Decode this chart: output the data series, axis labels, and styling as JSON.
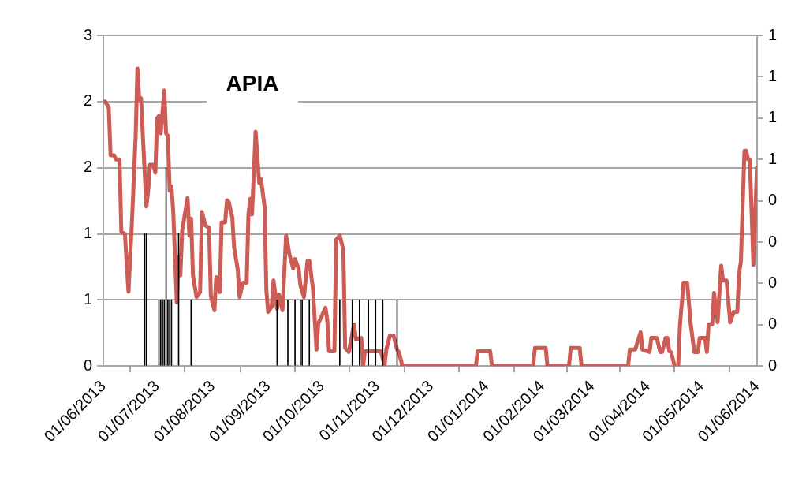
{
  "chart_data": {
    "type": "line",
    "title": "APIA",
    "xlim": [
      "2013-06-01",
      "2014-06-01"
    ],
    "xticks": [
      {
        "value": "2013-06-01",
        "label": "01/06/2013"
      },
      {
        "value": "2013-07-01",
        "label": "01/07/2013"
      },
      {
        "value": "2013-08-01",
        "label": "01/08/2013"
      },
      {
        "value": "2013-09-01",
        "label": "01/09/2013"
      },
      {
        "value": "2013-10-01",
        "label": "01/10/2013"
      },
      {
        "value": "2013-11-01",
        "label": "01/11/2013"
      },
      {
        "value": "2013-12-01",
        "label": "01/12/2013"
      },
      {
        "value": "2014-01-01",
        "label": "01/01/2014"
      },
      {
        "value": "2014-02-01",
        "label": "01/02/2014"
      },
      {
        "value": "2014-03-01",
        "label": "01/03/2014"
      },
      {
        "value": "2014-04-01",
        "label": "01/04/2014"
      },
      {
        "value": "2014-05-01",
        "label": "01/05/2014"
      },
      {
        "value": "2014-06-01",
        "label": "01/06/2014"
      }
    ],
    "ylim": [
      0,
      2.5
    ],
    "yticks": [
      0,
      {
        "value": 0.5,
        "label": "1"
      },
      1,
      {
        "value": 1.5,
        "label": "2"
      },
      2,
      {
        "value": 2.5,
        "label": "3"
      }
    ],
    "y2lim": [
      0,
      0.8
    ],
    "y2ticks": [
      0,
      {
        "value": 0.1,
        "label": "0"
      },
      {
        "value": 0.2,
        "label": "0"
      },
      {
        "value": 0.3,
        "label": "0"
      },
      {
        "value": 0.4,
        "label": "0"
      },
      {
        "value": 0.5,
        "label": "1"
      },
      {
        "value": 0.6,
        "label": "1"
      },
      {
        "value": 0.7,
        "label": "1"
      },
      {
        "value": 0.8,
        "label": "1"
      }
    ],
    "grid": "y",
    "legend": false,
    "marker": "none",
    "line_style": "solid",
    "series": [
      {
        "type": "bar",
        "color": "#000000",
        "x": [
          "2013-06-24",
          "2013-06-25",
          "2013-07-02",
          "2013-07-03",
          "2013-07-04",
          "2013-07-05",
          "2013-07-06",
          "2013-07-07",
          "2013-07-08",
          "2013-07-09",
          "2013-07-13",
          "2013-07-20",
          "2013-09-06",
          "2013-09-12",
          "2013-09-16",
          "2013-09-19",
          "2013-09-20",
          "2013-09-24",
          "2013-10-11",
          "2013-10-18",
          "2013-10-22",
          "2013-10-27",
          "2013-10-31",
          "2013-11-04",
          "2013-11-12"
        ],
        "values": [
          1,
          1,
          0.5,
          0.5,
          0.5,
          0.5,
          1.5,
          0.5,
          0.5,
          0.5,
          1,
          0.5,
          0.5,
          0.5,
          0.5,
          0.5,
          0.5,
          0.5,
          0.5,
          0.5,
          0.5,
          0.5,
          0.5,
          0.5,
          0.5
        ]
      },
      {
        "axis": "y2",
        "color": "#cd5c55",
        "x": [
          "2013-06-01",
          "2013-06-02",
          "2013-06-04",
          "2013-06-05",
          "2013-06-07",
          "2013-06-08",
          "2013-06-10",
          "2013-06-11",
          "2013-06-13",
          "2013-06-15",
          "2013-06-17",
          "2013-06-19",
          "2013-06-20",
          "2013-06-21",
          "2013-06-22",
          "2013-06-25",
          "2013-06-26",
          "2013-06-27",
          "2013-06-29",
          "2013-06-30",
          "2013-07-01",
          "2013-07-02",
          "2013-07-03",
          "2013-07-04",
          "2013-07-05",
          "2013-07-06",
          "2013-07-07",
          "2013-07-08",
          "2013-07-09",
          "2013-07-10",
          "2013-07-12",
          "2013-07-13",
          "2013-07-14",
          "2013-07-15",
          "2013-07-18",
          "2013-07-19",
          "2013-07-20",
          "2013-07-21",
          "2013-07-23",
          "2013-07-25",
          "2013-07-26",
          "2013-07-28",
          "2013-07-30",
          "2013-07-31",
          "2013-08-02",
          "2013-08-03",
          "2013-08-05",
          "2013-08-06",
          "2013-08-08",
          "2013-08-09",
          "2013-08-10",
          "2013-08-12",
          "2013-08-13",
          "2013-08-15",
          "2013-08-16",
          "2013-08-18",
          "2013-08-20",
          "2013-08-21",
          "2013-08-22",
          "2013-08-23",
          "2013-08-25",
          "2013-08-27",
          "2013-08-28",
          "2013-08-30",
          "2013-08-31",
          "2013-09-01",
          "2013-09-03",
          "2013-09-04",
          "2013-09-06",
          "2013-09-07",
          "2013-09-09",
          "2013-09-11",
          "2013-09-13",
          "2013-09-15",
          "2013-09-16",
          "2013-09-18",
          "2013-09-19",
          "2013-09-21",
          "2013-09-23",
          "2013-09-24",
          "2013-09-26",
          "2013-09-28",
          "2013-09-29",
          "2013-10-03",
          "2013-10-04",
          "2013-10-05",
          "2013-10-08",
          "2013-10-09",
          "2013-10-11",
          "2013-10-13",
          "2013-10-14",
          "2013-10-16",
          "2013-10-19",
          "2013-10-20",
          "2013-10-23",
          "2013-10-24",
          "2013-10-25",
          "2013-11-03",
          "2013-11-05",
          "2013-11-06",
          "2013-11-08",
          "2013-11-10",
          "2013-11-12",
          "2013-11-13",
          "2013-11-15",
          "2013-12-26",
          "2013-12-27",
          "2014-01-03",
          "2014-01-04",
          "2014-01-27",
          "2014-01-28",
          "2014-02-03",
          "2014-02-04",
          "2014-02-16",
          "2014-02-17",
          "2014-02-22",
          "2014-02-23",
          "2014-03-21",
          "2014-03-22",
          "2014-03-25",
          "2014-03-28",
          "2014-03-29",
          "2014-04-02",
          "2014-04-03",
          "2014-04-06",
          "2014-04-08",
          "2014-04-09",
          "2014-04-11",
          "2014-04-12",
          "2014-04-13",
          "2014-04-14",
          "2014-04-16",
          "2014-04-18",
          "2014-04-19",
          "2014-04-21",
          "2014-04-23",
          "2014-04-25",
          "2014-04-27",
          "2014-04-29",
          "2014-04-30",
          "2014-05-03",
          "2014-05-04",
          "2014-05-05",
          "2014-05-07",
          "2014-05-08",
          "2014-05-10",
          "2014-05-12",
          "2014-05-13",
          "2014-05-15",
          "2014-05-17",
          "2014-05-19",
          "2014-05-21",
          "2014-05-22",
          "2014-05-23",
          "2014-05-25",
          "2014-05-26",
          "2014-05-27",
          "2014-05-28",
          "2014-05-30",
          "2014-06-01"
        ],
        "values": [
          0.64,
          0.64,
          0.625,
          0.51,
          0.51,
          0.5,
          0.5,
          0.325,
          0.32,
          0.18,
          0.355,
          0.557,
          0.72,
          0.645,
          0.648,
          0.386,
          0.424,
          0.487,
          0.487,
          0.468,
          0.6,
          0.605,
          0.563,
          0.614,
          0.667,
          0.563,
          0.557,
          0.424,
          0.435,
          0.373,
          0.154,
          0.264,
          0.22,
          0.329,
          0.407,
          0.316,
          0.357,
          0.22,
          0.167,
          0.179,
          0.373,
          0.34,
          0.335,
          0.169,
          0.135,
          0.215,
          0.179,
          0.348,
          0.348,
          0.401,
          0.397,
          0.359,
          0.287,
          0.234,
          0.167,
          0.202,
          0.202,
          0.367,
          0.405,
          0.367,
          0.567,
          0.443,
          0.452,
          0.386,
          0.183,
          0.131,
          0.144,
          0.207,
          0.139,
          0.173,
          0.135,
          0.316,
          0.268,
          0.236,
          0.259,
          0.236,
          0.196,
          0.167,
          0.255,
          0.255,
          0.188,
          0.04,
          0.103,
          0.141,
          0.112,
          0.036,
          0.036,
          0.306,
          0.316,
          0.281,
          0.044,
          0.034,
          0.101,
          0.065,
          0.068,
          0,
          0.036,
          0.036,
          0,
          0.04,
          0.074,
          0.074,
          0.04,
          0.034,
          0,
          0,
          0.036,
          0.036,
          0,
          0,
          0.044,
          0.044,
          0,
          0,
          0.044,
          0.044,
          0,
          0,
          0.04,
          0.04,
          0.082,
          0.04,
          0.034,
          0.068,
          0.068,
          0.034,
          0.034,
          0.068,
          0.068,
          0.036,
          0.034,
          0,
          0,
          0.101,
          0.202,
          0.202,
          0.101,
          0.034,
          0.034,
          0.068,
          0.068,
          0.034,
          0.101,
          0.101,
          0.177,
          0.106,
          0.243,
          0.207,
          0.207,
          0.106,
          0.131,
          0.131,
          0.224,
          0.253,
          0.521,
          0.521,
          0.5,
          0.5,
          0.245,
          0.481
        ]
      }
    ]
  }
}
